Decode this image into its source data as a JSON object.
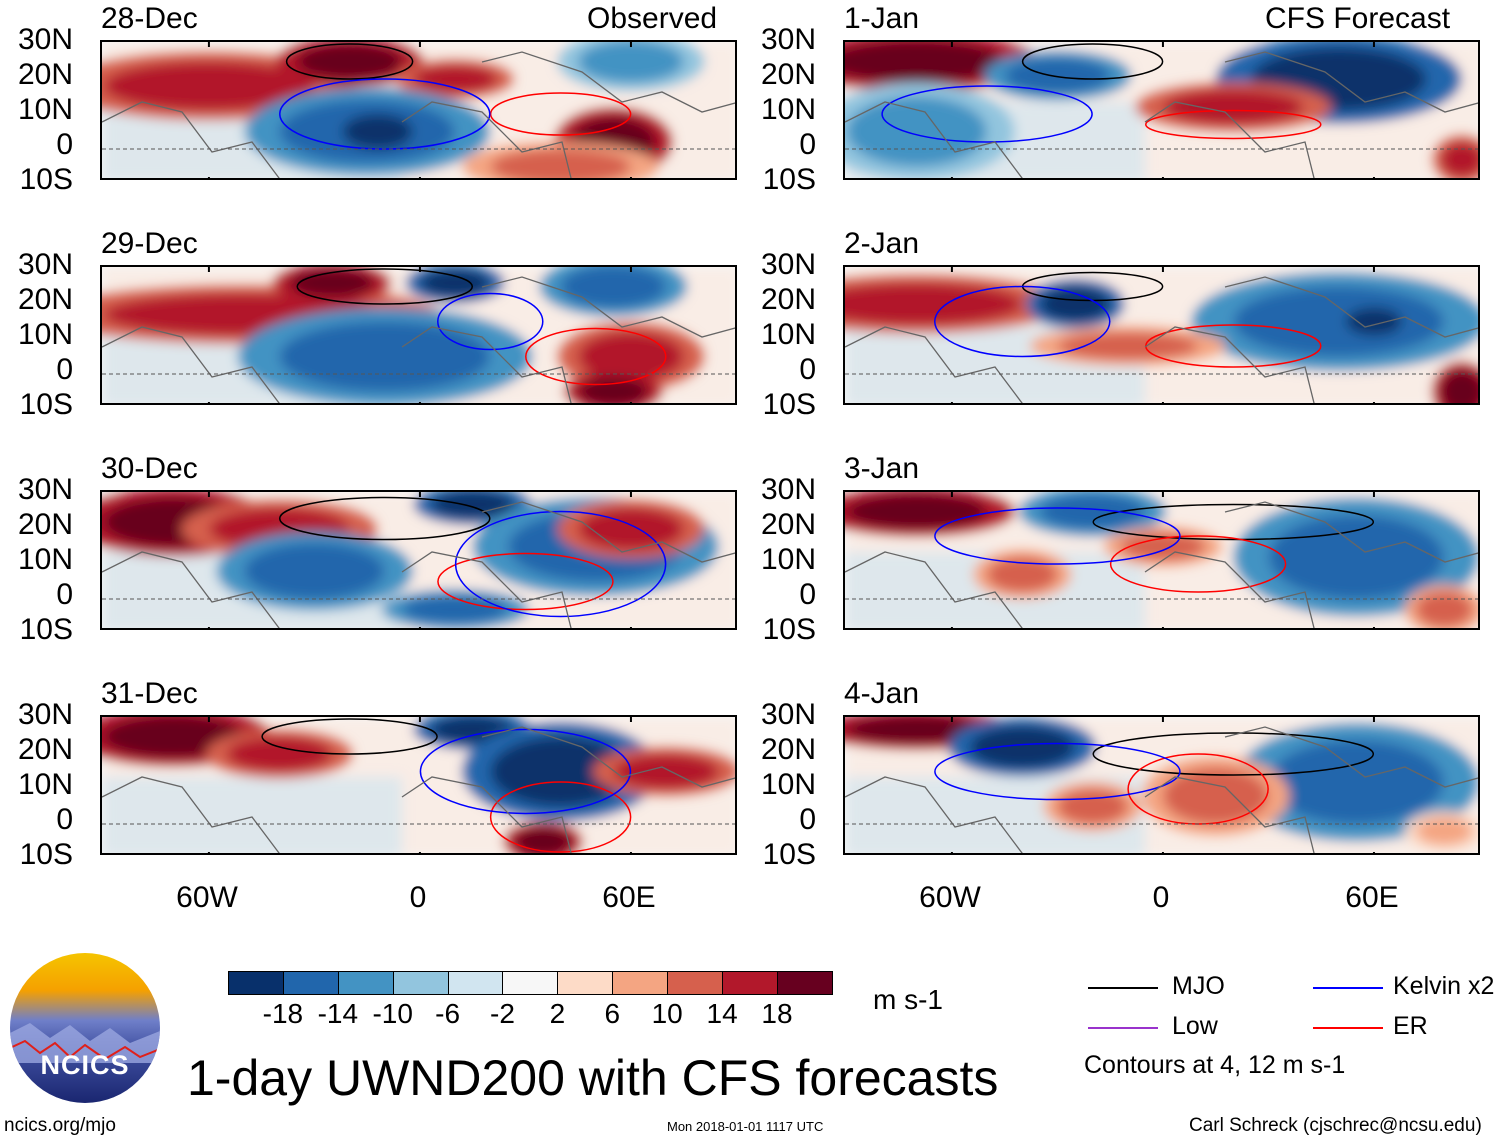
{
  "title": "1-day UWND200 with CFS forecasts",
  "headers": {
    "observed": "Observed",
    "forecast": "CFS Forecast"
  },
  "observed_dates": [
    "28-Dec",
    "29-Dec",
    "30-Dec",
    "31-Dec"
  ],
  "forecast_dates": [
    "1-Jan",
    "2-Jan",
    "3-Jan",
    "4-Jan"
  ],
  "lat_labels": [
    "30N",
    "20N",
    "10N",
    "0",
    "10S"
  ],
  "lon_labels": [
    "60W",
    "0",
    "60E"
  ],
  "colorbar": {
    "labels": [
      "-18",
      "-14",
      "-10",
      "-6",
      "-2",
      "2",
      "6",
      "10",
      "14",
      "18"
    ],
    "colors": [
      "#08306b",
      "#2166ac",
      "#4393c3",
      "#92c5de",
      "#d1e5f0",
      "#f7f7f7",
      "#fddbc7",
      "#f4a582",
      "#d6604d",
      "#b2182b",
      "#67001f"
    ],
    "units": "m s-1"
  },
  "legend": {
    "items": [
      {
        "label": "MJO",
        "color": "#000000"
      },
      {
        "label": "Kelvin x2",
        "color": "#0000ff"
      },
      {
        "label": "Low",
        "color": "#9933cc"
      },
      {
        "label": "ER",
        "color": "#ff0000"
      }
    ],
    "note": "Contours at 4, 12 m s-1"
  },
  "logo": "NCICS",
  "footer": {
    "left": "ncics.org/mjo",
    "center": "Mon 2018-01-01 1117 UTC",
    "right": "Carl Schreck (cjschrec@ncsu.edu)"
  }
}
